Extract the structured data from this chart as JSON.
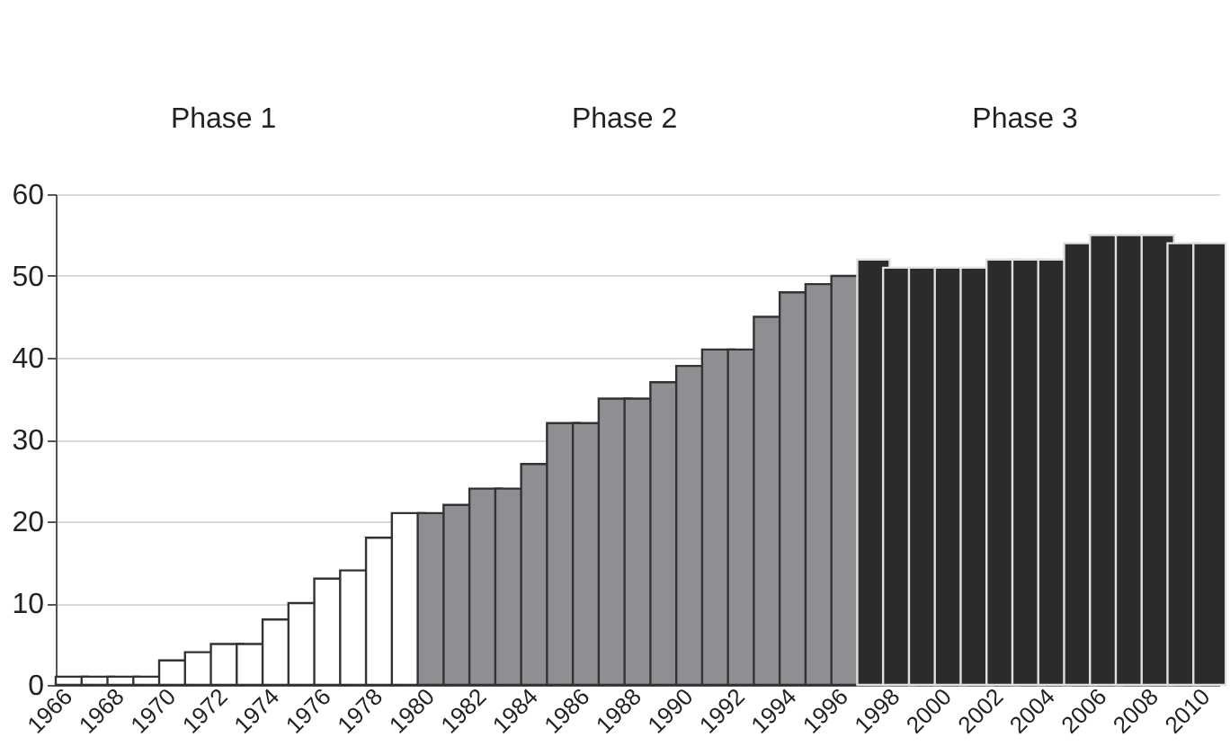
{
  "chart_data": {
    "type": "bar",
    "categories": [
      "1966",
      null,
      "1968",
      null,
      "1970",
      null,
      "1972",
      null,
      "1974",
      null,
      "1976",
      null,
      "1978",
      null,
      "1980",
      null,
      "1982",
      null,
      "1984",
      null,
      "1986",
      null,
      "1988",
      null,
      "1990",
      null,
      "1992",
      null,
      "1994",
      null,
      "1996",
      null,
      "1998",
      null,
      "2000",
      null,
      "2002",
      null,
      "2004",
      null,
      "2006",
      null,
      "2008",
      null,
      "2010"
    ],
    "values": [
      1,
      1,
      1,
      1,
      3,
      4,
      5,
      5,
      8,
      10,
      13,
      14,
      18,
      21,
      21,
      22,
      24,
      24,
      27,
      32,
      32,
      35,
      35,
      37,
      39,
      41,
      41,
      45,
      48,
      49,
      50,
      52,
      51,
      51,
      51,
      51,
      52,
      52,
      52,
      54,
      55,
      55,
      55,
      54,
      54
    ],
    "colors": [
      "#ffffff",
      "#ffffff",
      "#ffffff",
      "#ffffff",
      "#ffffff",
      "#ffffff",
      "#ffffff",
      "#ffffff",
      "#ffffff",
      "#ffffff",
      "#ffffff",
      "#ffffff",
      "#ffffff",
      "#ffffff",
      "#8e8f93",
      "#8e8f93",
      "#8e8f93",
      "#8e8f93",
      "#8e8f93",
      "#8e8f93",
      "#8e8f93",
      "#8e8f93",
      "#8e8f93",
      "#8e8f93",
      "#8e8f93",
      "#8e8f93",
      "#8e8f93",
      "#8e8f93",
      "#8e8f93",
      "#8e8f93",
      "#8e8f93",
      "#2b2b2b",
      "#2b2b2b",
      "#2b2b2b",
      "#2b2b2b",
      "#2b2b2b",
      "#2b2b2b",
      "#2b2b2b",
      "#2b2b2b",
      "#2b2b2b",
      "#2b2b2b",
      "#2b2b2b",
      "#2b2b2b",
      "#2b2b2b",
      "#2b2b2b"
    ],
    "annotations": [
      "Phase 1",
      "Phase 2",
      "Phase 3"
    ],
    "ylim": [
      0,
      60
    ],
    "yticks": [
      0,
      10,
      20,
      30,
      40,
      50,
      60
    ],
    "grid": "y"
  }
}
